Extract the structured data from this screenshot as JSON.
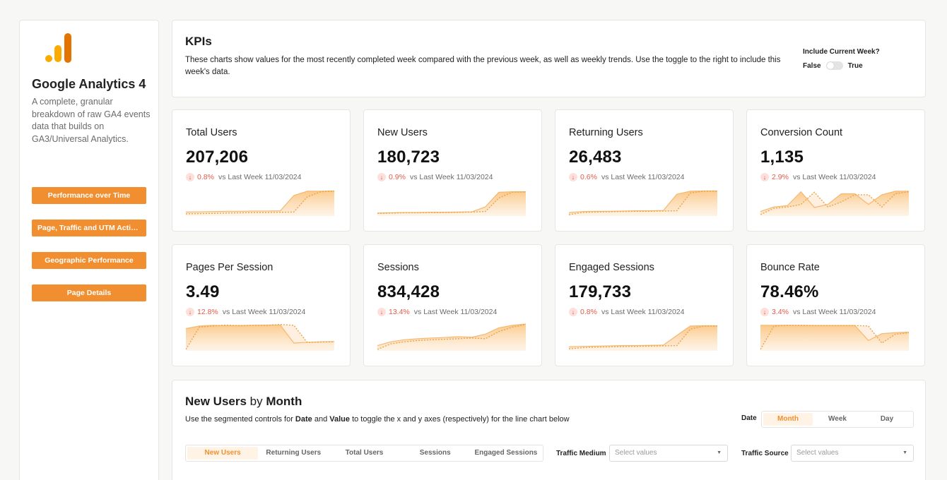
{
  "sidebar": {
    "title": "Google Analytics 4",
    "description": "A complete, granular breakdown of raw GA4 events data that builds on GA3/Universal Analytics.",
    "nav": [
      {
        "label": "Performance over Time"
      },
      {
        "label": "Page, Traffic and UTM Activity"
      },
      {
        "label": "Geographic Performance"
      },
      {
        "label": "Page Details"
      }
    ]
  },
  "kpi_header": {
    "title": "KPIs",
    "description": "These charts show values for the most recently completed week compared with the previous week, as well as weekly trends.  Use the toggle to the right to include this week's data.",
    "toggle": {
      "label": "Include Current Week?",
      "off_label": "False",
      "on_label": "True",
      "value": false
    }
  },
  "metrics": [
    {
      "title": "Total Users",
      "value": "207,206",
      "change": "0.8%",
      "direction": "down",
      "comparison": "vs Last Week 11/03/2024",
      "current": [
        0.1,
        0.11,
        0.12,
        0.13,
        0.13,
        0.14,
        0.14,
        0.15,
        0.75,
        0.92,
        0.92,
        0.93
      ],
      "previous": [
        0.03,
        0.04,
        0.05,
        0.06,
        0.07,
        0.08,
        0.08,
        0.09,
        0.1,
        0.7,
        0.9,
        0.92
      ]
    },
    {
      "title": "New Users",
      "value": "180,723",
      "change": "0.9%",
      "direction": "down",
      "comparison": "vs Last Week 11/03/2024",
      "current": [
        0.06,
        0.07,
        0.08,
        0.08,
        0.09,
        0.09,
        0.1,
        0.11,
        0.3,
        0.88,
        0.9,
        0.9
      ],
      "previous": [
        0.05,
        0.06,
        0.07,
        0.07,
        0.08,
        0.08,
        0.09,
        0.1,
        0.12,
        0.65,
        0.88,
        0.89
      ]
    },
    {
      "title": "Returning Users",
      "value": "26,483",
      "change": "0.6%",
      "direction": "down",
      "comparison": "vs Last Week 11/03/2024",
      "current": [
        0.08,
        0.12,
        0.13,
        0.13,
        0.14,
        0.15,
        0.15,
        0.16,
        0.8,
        0.92,
        0.93,
        0.93
      ],
      "previous": [
        0.0,
        0.08,
        0.1,
        0.11,
        0.12,
        0.13,
        0.13,
        0.14,
        0.15,
        0.85,
        0.92,
        0.92
      ]
    },
    {
      "title": "Conversion Count",
      "value": "1,135",
      "change": "2.9%",
      "direction": "down",
      "comparison": "vs Last Week 11/03/2024",
      "current": [
        0.12,
        0.3,
        0.35,
        0.9,
        0.28,
        0.4,
        0.82,
        0.82,
        0.4,
        0.78,
        0.92,
        0.92
      ],
      "previous": [
        0.0,
        0.25,
        0.3,
        0.4,
        0.88,
        0.3,
        0.5,
        0.78,
        0.78,
        0.3,
        0.82,
        0.9
      ]
    },
    {
      "title": "Pages Per Session",
      "value": "3.49",
      "change": "12.8%",
      "direction": "down",
      "comparison": "vs Last Week 11/03/2024",
      "current": [
        0.82,
        0.92,
        0.95,
        0.93,
        0.94,
        0.95,
        0.96,
        0.96,
        0.25,
        0.28,
        0.3,
        0.31
      ],
      "previous": [
        0.0,
        0.88,
        0.92,
        0.96,
        0.93,
        0.95,
        0.95,
        0.98,
        0.95,
        0.27,
        0.29,
        0.3
      ]
    },
    {
      "title": "Sessions",
      "value": "834,428",
      "change": "13.4%",
      "direction": "down",
      "comparison": "vs Last Week 11/03/2024",
      "current": [
        0.15,
        0.3,
        0.38,
        0.42,
        0.45,
        0.47,
        0.5,
        0.48,
        0.6,
        0.85,
        0.95,
        1.0
      ],
      "previous": [
        0.0,
        0.22,
        0.3,
        0.35,
        0.38,
        0.4,
        0.42,
        0.45,
        0.42,
        0.7,
        0.88,
        0.98
      ]
    },
    {
      "title": "Engaged Sessions",
      "value": "179,733",
      "change": "0.8%",
      "direction": "down",
      "comparison": "vs Last Week 11/03/2024",
      "current": [
        0.1,
        0.12,
        0.13,
        0.14,
        0.15,
        0.15,
        0.16,
        0.17,
        0.55,
        0.92,
        0.93,
        0.93
      ],
      "previous": [
        0.02,
        0.07,
        0.09,
        0.1,
        0.11,
        0.12,
        0.13,
        0.14,
        0.15,
        0.8,
        0.92,
        0.92
      ]
    },
    {
      "title": "Bounce Rate",
      "value": "78.46%",
      "change": "3.4%",
      "direction": "down",
      "comparison": "vs Last Week 11/03/2024",
      "current": [
        0.95,
        0.95,
        0.95,
        0.94,
        0.94,
        0.94,
        0.94,
        0.94,
        0.35,
        0.62,
        0.66,
        0.68
      ],
      "previous": [
        0.0,
        0.92,
        0.95,
        0.95,
        0.94,
        0.94,
        0.94,
        0.94,
        0.92,
        0.25,
        0.6,
        0.65
      ]
    }
  ],
  "new_users": {
    "title_metric": "New Users",
    "title_by": "by",
    "title_period": "Month",
    "subtitle_pre": "Use the segmented controls for",
    "subtitle_date": "Date",
    "subtitle_and": "and",
    "subtitle_value": "Value",
    "subtitle_post": "to toggle the x and y axes (respectively) for the line chart below",
    "date_label": "Date",
    "date_options": [
      "Month",
      "Week",
      "Day"
    ],
    "date_selected": "Month",
    "value_options": [
      "New Users",
      "Returning Users",
      "Total Users",
      "Sessions",
      "Engaged Sessions"
    ],
    "value_selected": "New Users",
    "traffic_medium": {
      "label": "Traffic Medium",
      "placeholder": "Select values"
    },
    "traffic_source": {
      "label": "Traffic Source",
      "placeholder": "Select values"
    }
  },
  "colors": {
    "accent": "#f18f30",
    "negative": "#e35a4a",
    "spark_line": "#f5b870",
    "spark_prev": "#e8a64a"
  },
  "icons": {
    "logo": "google-analytics-logo",
    "down": "arrow-down-icon",
    "caret": "caret-down-icon"
  }
}
